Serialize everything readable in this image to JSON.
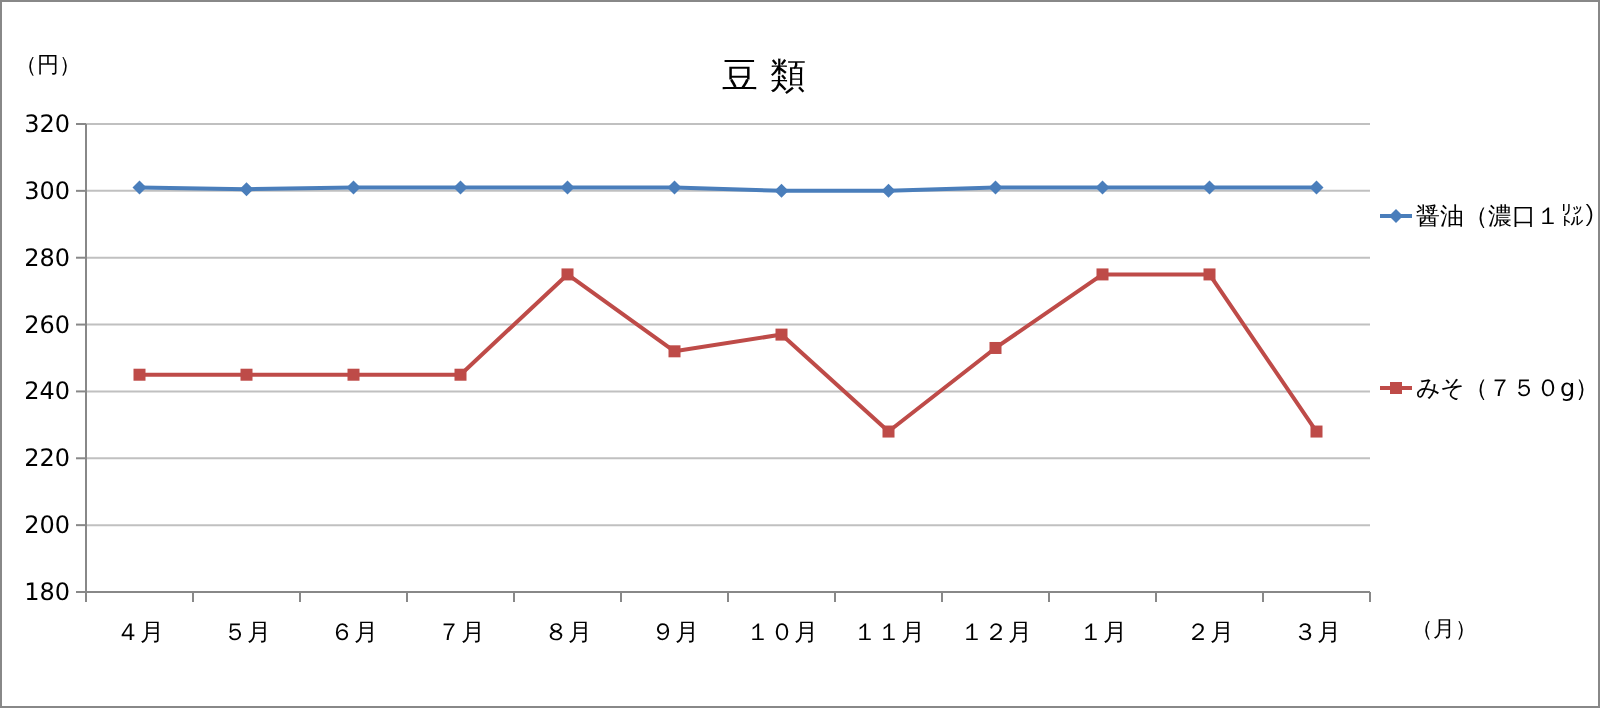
{
  "chart_data": {
    "type": "line",
    "title": "豆 類",
    "ylabel": "（円）",
    "xlabel": "（月）",
    "categories": [
      "４月",
      "５月",
      "６月",
      "７月",
      "８月",
      "９月",
      "１０月",
      "１１月",
      "１２月",
      "１月",
      "２月",
      "３月"
    ],
    "series": [
      {
        "name": "醤油（濃口１㍑）",
        "color": "#4a7ebb",
        "marker": "diamond",
        "values": [
          301,
          300.5,
          301,
          301,
          301,
          301,
          300,
          300,
          301,
          301,
          301,
          301
        ]
      },
      {
        "name": "みそ（７５０g）",
        "color": "#be4b48",
        "marker": "square",
        "values": [
          245,
          245,
          245,
          245,
          275,
          252,
          257,
          228,
          253,
          275,
          275,
          228
        ]
      }
    ],
    "ylim": [
      180,
      320
    ],
    "yticks": [
      180,
      200,
      220,
      240,
      260,
      280,
      300,
      320
    ],
    "grid": "y",
    "legend": "right"
  }
}
